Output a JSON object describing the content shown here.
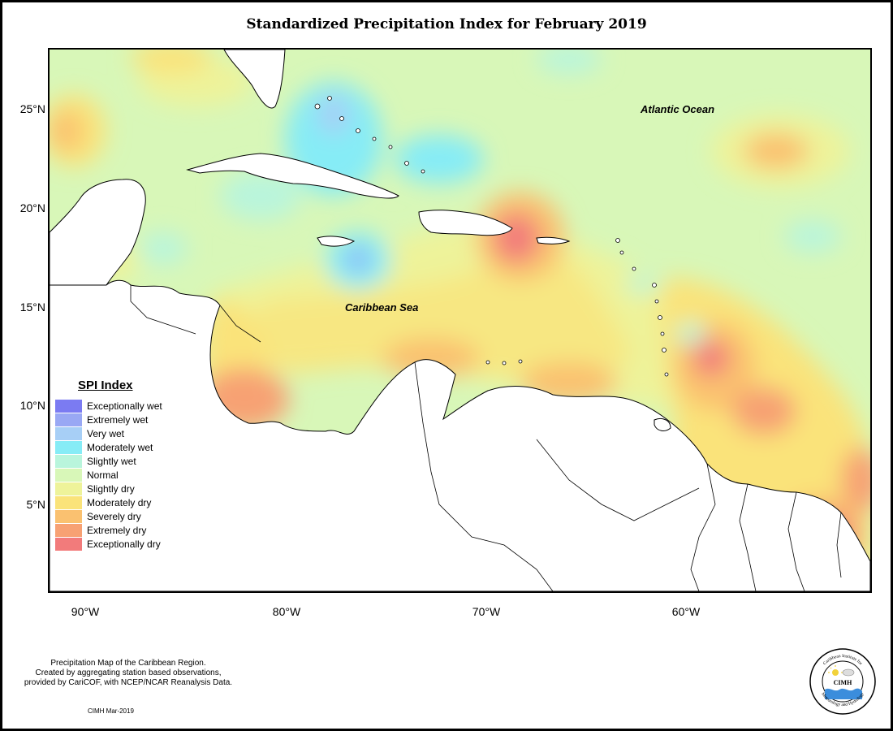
{
  "title": "Standardized Precipitation Index for February 2019",
  "map": {
    "y_ticks": [
      "25°N",
      "20°N",
      "15°N",
      "10°N",
      "5°N"
    ],
    "x_ticks": [
      "90°W",
      "80°W",
      "70°W",
      "60°W"
    ],
    "labels": {
      "atlantic": "Atlantic Ocean",
      "caribbean": "Caribbean Sea"
    }
  },
  "legend": {
    "title": "SPI Index",
    "items": [
      {
        "label": "Exceptionally wet",
        "color": "#7b7bf2"
      },
      {
        "label": "Extremely wet",
        "color": "#99a8f4"
      },
      {
        "label": "Very wet",
        "color": "#a7cff6"
      },
      {
        "label": "Moderately wet",
        "color": "#86ecf6"
      },
      {
        "label": "Slightly wet",
        "color": "#b9f5dc"
      },
      {
        "label": "Normal",
        "color": "#d8f7b8"
      },
      {
        "label": "Slightly dry",
        "color": "#eef39a"
      },
      {
        "label": "Moderately dry",
        "color": "#fae37a"
      },
      {
        "label": "Severely dry",
        "color": "#fac170"
      },
      {
        "label": "Extremely dry",
        "color": "#f7a173"
      },
      {
        "label": "Exceptionally dry",
        "color": "#f27b7b"
      }
    ]
  },
  "footer": {
    "line1": "Precipitation Map of the Caribbean Region.",
    "line2": "Created by aggregating station based observations,",
    "line3": "provided by CariCOF, with NCEP/NCAR Reanalysis Data.",
    "credit": "CIMH Mar-2019"
  },
  "logo": {
    "text": "CIMH",
    "ring_top": "Caribbean Institute for",
    "ring_bottom": "Meteorology and Hydrology"
  }
}
